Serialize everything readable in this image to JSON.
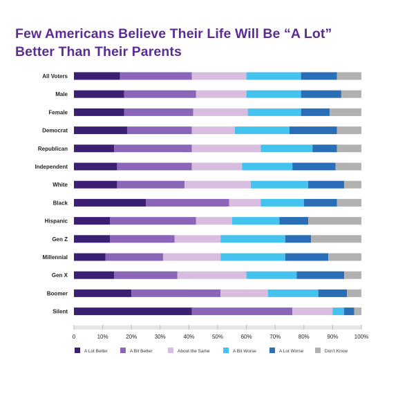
{
  "title_line1": "Few Americans Believe Their Life Will Be “A Lot”",
  "title_line2": "Better Than Their Parents",
  "colors": {
    "title": "#5b2c91",
    "series": [
      "#3b1f73",
      "#8b65b8",
      "#d8bde0",
      "#45c3ef",
      "#2a6eb7",
      "#b1b1b1"
    ],
    "grid": "#d9d9d9",
    "axis_text": "#222222"
  },
  "chart_data": {
    "type": "bar",
    "orientation": "horizontal",
    "stacked": true,
    "percent_stacked": true,
    "title": "Few Americans Believe Their Life Will Be “A Lot” Better Than Their Parents",
    "xlabel": "",
    "ylabel": "",
    "xlim": [
      0,
      100
    ],
    "x_ticks": [
      "0",
      "10%",
      "20%",
      "30%",
      "40%",
      "50%",
      "60%",
      "70%",
      "80%",
      "90%",
      "100%"
    ],
    "grid": true,
    "legend_position": "bottom",
    "categories": [
      "All Voters",
      "Male",
      "Female",
      "Democrat",
      "Republican",
      "Independent",
      "White",
      "Black",
      "Hispanic",
      "Gen Z",
      "Millennial",
      "Gen X",
      "Boomer",
      "Silent"
    ],
    "series": [
      {
        "name": "A Lot Better",
        "values": [
          16,
          17.5,
          17.5,
          18.5,
          14,
          15,
          15,
          25,
          12.5,
          12.5,
          11,
          14,
          20,
          41
        ]
      },
      {
        "name": "A Bit Better",
        "values": [
          25,
          25,
          24,
          22.5,
          27,
          26,
          23.5,
          29,
          30,
          22.5,
          20,
          22,
          31,
          35
        ]
      },
      {
        "name": "About the Same",
        "values": [
          19,
          17.5,
          19,
          15,
          24,
          17.5,
          23,
          11,
          12.5,
          16,
          20,
          24,
          16.5,
          14
        ]
      },
      {
        "name": "A Bit Worse",
        "values": [
          19,
          19,
          18.5,
          19,
          18,
          17.5,
          20,
          15,
          16.5,
          22.5,
          22.5,
          17.5,
          17.5,
          4
        ]
      },
      {
        "name": "A Lot Worse",
        "values": [
          12.5,
          14,
          10,
          16.5,
          8.5,
          15,
          12.5,
          11.5,
          10,
          9,
          15,
          16.5,
          10,
          3.5
        ]
      },
      {
        "name": "Don't Know",
        "values": [
          8.5,
          7,
          11,
          8.5,
          8.5,
          9,
          6,
          8.5,
          18.5,
          17.5,
          11.5,
          6,
          5,
          2.5
        ]
      }
    ]
  }
}
